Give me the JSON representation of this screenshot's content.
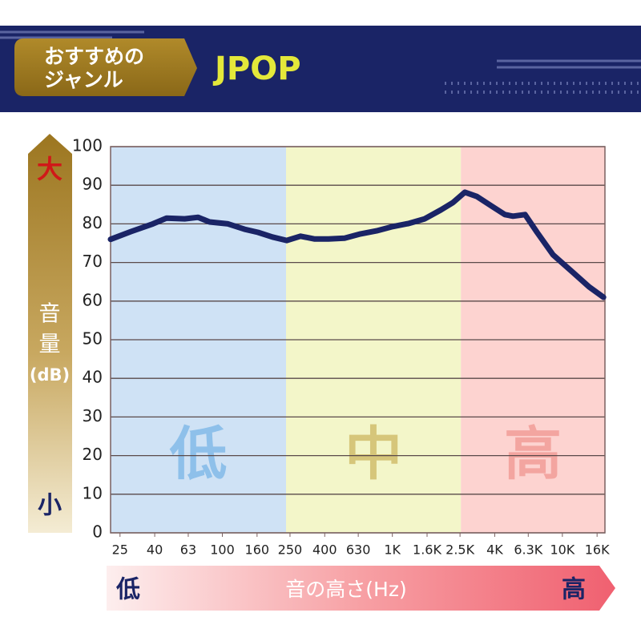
{
  "header": {
    "tag_lines": [
      "おすすめの",
      "ジャンル"
    ],
    "genre": "JPOP"
  },
  "chart_data": {
    "type": "line",
    "x": [
      22,
      29,
      39,
      47,
      60,
      72,
      84,
      108,
      135,
      162,
      197,
      239,
      288,
      347,
      421,
      524,
      650,
      808,
      1004,
      1248,
      1550,
      1928,
      2270,
      2670,
      3140,
      3900,
      4590,
      5120,
      6030,
      7100,
      8810,
      11560,
      14360,
      17460
    ],
    "series": [
      {
        "name": "JPOP",
        "color": "#1a2466",
        "values": [
          76,
          78,
          80,
          81.5,
          81.3,
          81.7,
          80.5,
          80,
          78.6,
          77.8,
          76.6,
          75.7,
          76.8,
          76.1,
          76.1,
          76.3,
          77.4,
          78.2,
          79.3,
          80.1,
          81.3,
          83.6,
          85.5,
          88.2,
          87.1,
          84.4,
          82.4,
          82,
          82.4,
          77.8,
          72,
          67.4,
          63.7,
          61
        ]
      }
    ],
    "xlim": [
      22,
      17800
    ],
    "xscale": "log",
    "xticks": [
      25,
      40,
      63,
      100,
      160,
      250,
      400,
      630,
      {
        "value": 1000,
        "label": "1K"
      },
      {
        "value": 1600,
        "label": "1.6K"
      },
      {
        "value": 2500,
        "label": "2.5K"
      },
      {
        "value": 4000,
        "label": "4K"
      },
      {
        "value": 6300,
        "label": "6.3K"
      },
      {
        "value": 10000,
        "label": "10K"
      },
      {
        "value": 16000,
        "label": "16K"
      }
    ],
    "ylim": [
      0,
      100
    ],
    "yticks": [
      0,
      10,
      20,
      30,
      40,
      50,
      60,
      70,
      80,
      90,
      100
    ],
    "grid": true,
    "bands": [
      {
        "label": "低",
        "from": 22,
        "to": 237,
        "color": "#cfe2f5",
        "label_color": "#8ec0ea"
      },
      {
        "label": "中",
        "from": 237,
        "to": 2530,
        "color": "#f3f6c9",
        "label_color": "#d6c67a"
      },
      {
        "label": "高",
        "from": 2530,
        "to": 17800,
        "color": "#fdd3d0",
        "label_color": "#f3a5a0"
      }
    ],
    "ylabel": {
      "lines": [
        "音",
        "量",
        "(dB)"
      ],
      "high": "大",
      "low": "小"
    },
    "xlabel": {
      "text": "音の高さ(Hz)",
      "low": "低",
      "high": "高"
    }
  }
}
